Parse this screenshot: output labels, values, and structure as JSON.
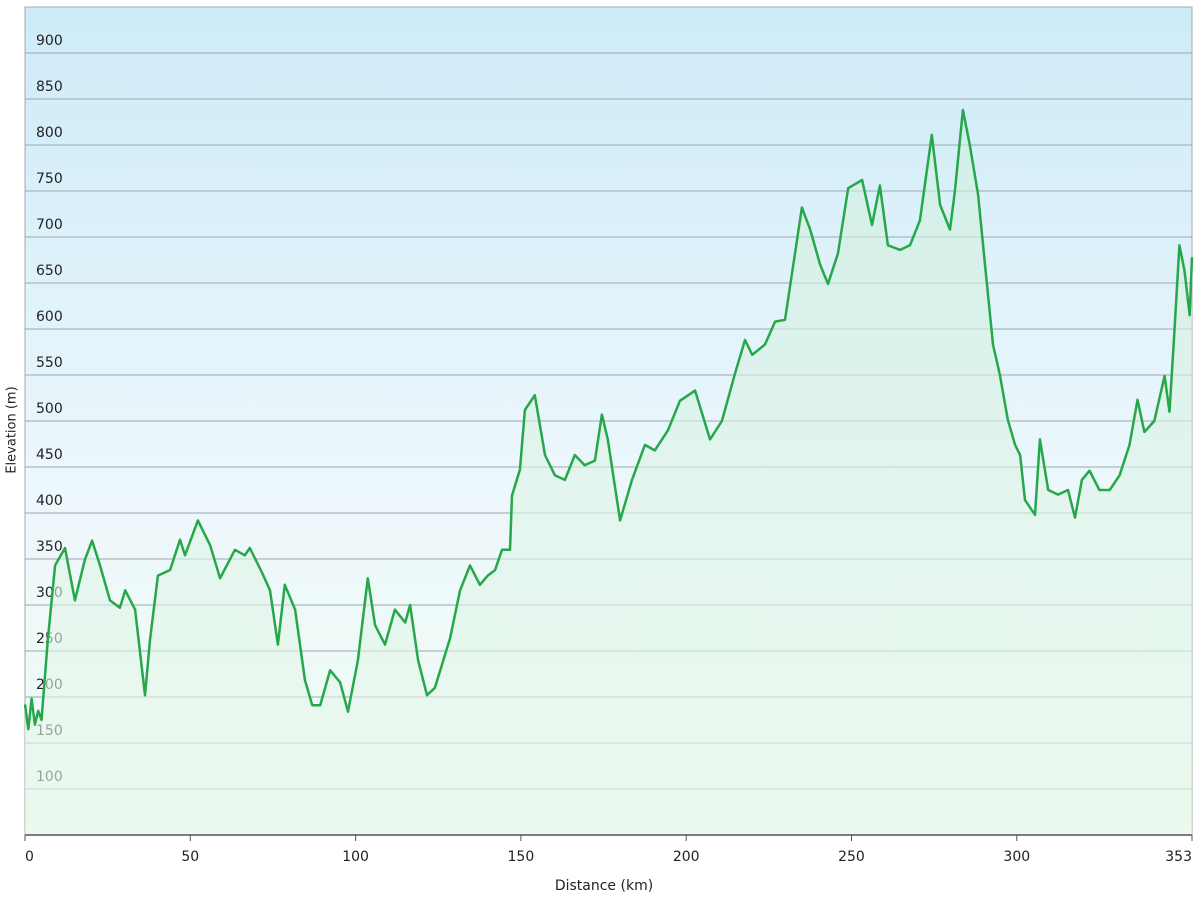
{
  "chart_data": {
    "type": "line",
    "xlabel": "Distance  (km)",
    "ylabel": "Elevation (m)",
    "color": "#26a84a",
    "grid": true,
    "xlim": [
      0,
      353
    ],
    "ylim": [
      50,
      950
    ],
    "xticks": [
      0,
      50,
      100,
      150,
      200,
      250,
      300,
      353
    ],
    "yticks": [
      100,
      150,
      200,
      250,
      300,
      350,
      400,
      450,
      500,
      550,
      600,
      650,
      700,
      750,
      800,
      850,
      900
    ],
    "x": [
      0,
      1,
      2,
      3,
      4,
      5,
      6.9,
      9.1,
      12.1,
      15.1,
      18.1,
      20.3,
      22.7,
      25.7,
      28.7,
      30.3,
      33.3,
      36.3,
      37.8,
      40.2,
      43.9,
      46.9,
      48.4,
      52.3,
      56,
      59,
      63.5,
      66.5,
      68,
      71.6,
      74.1,
      76.5,
      78.6,
      81.7,
      84.7,
      86.9,
      89.3,
      92.3,
      95.3,
      97.7,
      100.7,
      103.7,
      105.9,
      108.9,
      111.9,
      115,
      116.5,
      118.9,
      121.6,
      124,
      128.6,
      131.6,
      134.6,
      137.6,
      140,
      142.2,
      144.3,
      146.7,
      147.3,
      149.7,
      151.2,
      154.2,
      157.3,
      160.3,
      163.3,
      166.3,
      169.3,
      172.4,
      174.5,
      176.3,
      180,
      183.6,
      187.5,
      190.5,
      194.5,
      198.1,
      202.7,
      207.2,
      210.8,
      214.8,
      217.8,
      220,
      223.8,
      226.9,
      229.9,
      235,
      237.5,
      240.5,
      242.9,
      245.9,
      249,
      253.2,
      256.2,
      258.6,
      261,
      264.7,
      267.7,
      270.7,
      274.3,
      276.8,
      279.8,
      281.3,
      283.7,
      285.8,
      288.3,
      290.4,
      292.8,
      294.9,
      297.3,
      299.5,
      301,
      302.5,
      305.5,
      307,
      309.5,
      312.5,
      315.5,
      317.6,
      319.7,
      322,
      325,
      328.1,
      331.1,
      334.1,
      336.5,
      338.6,
      341.6,
      344.7,
      346.2,
      347.7,
      349.2,
      350.7,
      352.3,
      353
    ],
    "values": [
      192,
      165,
      198,
      170,
      185,
      175,
      262,
      343,
      362,
      305,
      349,
      370,
      343,
      305,
      297,
      316,
      295,
      202,
      262,
      332,
      338,
      371,
      354,
      392,
      365,
      329,
      360,
      354,
      362,
      336,
      316,
      257,
      322,
      295,
      218,
      191,
      191,
      229,
      216,
      184,
      240,
      329,
      278,
      257,
      295,
      281,
      300,
      240,
      202,
      210,
      264,
      316,
      343,
      322,
      332,
      338,
      360,
      360,
      419,
      447,
      512,
      528,
      463,
      441,
      436,
      463,
      452,
      457,
      507,
      480,
      392,
      436,
      474,
      468,
      490,
      522,
      533,
      480,
      500,
      552,
      588,
      572,
      583,
      608,
      610,
      732,
      708,
      670,
      649,
      682,
      753,
      762,
      713,
      756,
      691,
      686,
      691,
      718,
      811,
      735,
      708,
      751,
      838,
      800,
      746,
      670,
      583,
      550,
      501,
      474,
      463,
      414,
      398,
      480,
      425,
      420,
      425,
      395,
      436,
      446,
      425,
      425,
      441,
      474,
      523,
      488,
      500,
      549,
      510,
      599,
      691,
      664,
      615,
      678
    ]
  }
}
